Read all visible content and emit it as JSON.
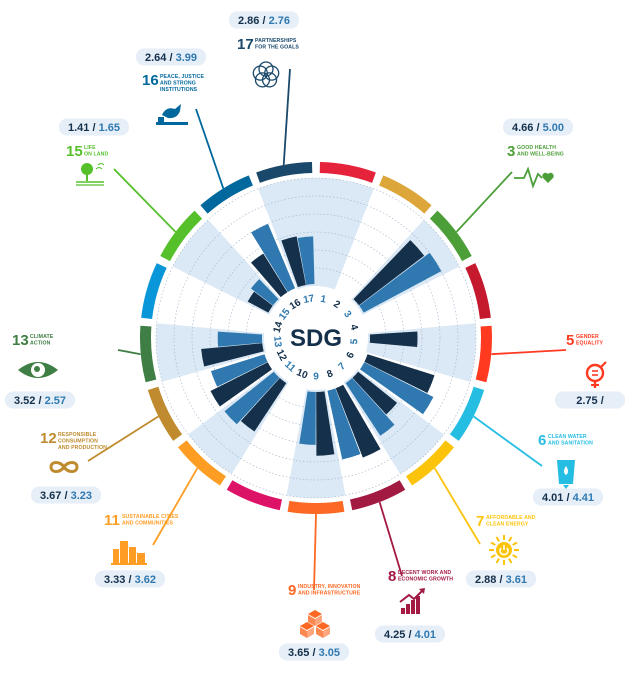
{
  "chart_data": {
    "type": "radial-bar",
    "center_label": "SDG",
    "rmax": 6,
    "colors": {
      "dark_series": "#14304a",
      "light_series": "#2f79b0",
      "background_band": "#dbe8f5",
      "pill": "#e6eef8"
    },
    "goals": [
      {
        "num": "1",
        "title": [],
        "color": "#e5243b",
        "a": null,
        "b": null,
        "icon": "",
        "labelled": false
      },
      {
        "num": "2",
        "title": [],
        "color": "#dda63a",
        "a": null,
        "b": null,
        "icon": "",
        "labelled": false
      },
      {
        "num": "3",
        "title": [
          "GOOD HEALTH",
          "AND WELL-BEING"
        ],
        "color": "#4c9f38",
        "a": "4.66",
        "b": "5.00",
        "va": 4.66,
        "vb": 5.0,
        "icon": "heartbeat-icon",
        "labelled": true
      },
      {
        "num": "4",
        "title": [],
        "color": "#c5192d",
        "a": null,
        "b": null,
        "icon": "",
        "labelled": false
      },
      {
        "num": "5",
        "title": [
          "GENDER",
          "EQUALITY"
        ],
        "color": "#ff3a21",
        "a": "2.75",
        "b": "",
        "va": 2.75,
        "vb": null,
        "icon": "gender-equality-icon",
        "labelled": true
      },
      {
        "num": "6",
        "title": [
          "CLEAN WATER",
          "AND SANITATION"
        ],
        "color": "#26bde2",
        "a": "4.01",
        "b": "4.41",
        "va": 4.01,
        "vb": 4.41,
        "icon": "water-glass-icon",
        "labelled": true
      },
      {
        "num": "7",
        "title": [
          "AFFORDABLE AND",
          "CLEAN ENERGY"
        ],
        "color": "#fcc30b",
        "a": "2.88",
        "b": "3.61",
        "va": 2.88,
        "vb": 3.61,
        "icon": "sun-power-icon",
        "labelled": true
      },
      {
        "num": "8",
        "title": [
          "DECENT WORK AND",
          "ECONOMIC GROWTH"
        ],
        "color": "#a21942",
        "a": "4.25",
        "b": "4.01",
        "va": 4.25,
        "vb": 4.01,
        "icon": "growth-chart-icon",
        "labelled": true
      },
      {
        "num": "9",
        "title": [
          "INDUSTRY, INNOVATION",
          "AND INFRASTRUCTURE"
        ],
        "color": "#fd6925",
        "a": "3.65",
        "b": "3.05",
        "va": 3.65,
        "vb": 3.05,
        "icon": "cubes-icon",
        "labelled": true
      },
      {
        "num": "10",
        "title": [],
        "color": "#dd1367",
        "a": null,
        "b": null,
        "icon": "",
        "labelled": false
      },
      {
        "num": "11",
        "title": [
          "SUSTAINABLE CITIES",
          "AND COMMUNITIES"
        ],
        "color": "#fd9d24",
        "a": "3.33",
        "b": "3.62",
        "va": 3.33,
        "vb": 3.62,
        "icon": "city-icon",
        "labelled": true
      },
      {
        "num": "12",
        "title": [
          "RESPONSIBLE",
          "CONSUMPTION",
          "AND PRODUCTION"
        ],
        "color": "#bf8b2e",
        "a": "3.67",
        "b": "3.23",
        "va": 3.67,
        "vb": 3.23,
        "icon": "infinity-icon",
        "labelled": true
      },
      {
        "num": "13",
        "title": [
          "CLIMATE",
          "ACTION"
        ],
        "color": "#3f7e44",
        "a": "3.52",
        "b": "2.57",
        "va": 3.52,
        "vb": 2.57,
        "icon": "eye-globe-icon",
        "labelled": true
      },
      {
        "num": "14",
        "title": [],
        "color": "#0a97d9",
        "a": null,
        "b": null,
        "icon": "",
        "labelled": false
      },
      {
        "num": "15",
        "title": [
          "LIFE",
          "ON LAND"
        ],
        "color": "#56c02b",
        "a": "1.41",
        "b": "1.65",
        "va": 1.41,
        "vb": 1.65,
        "icon": "tree-icon",
        "labelled": true
      },
      {
        "num": "16",
        "title": [
          "PEACE, JUSTICE",
          "AND STRONG",
          "INSTITUTIONS"
        ],
        "color": "#00689d",
        "a": "2.64",
        "b": "3.99",
        "va": 2.64,
        "vb": 3.99,
        "icon": "dove-gavel-icon",
        "labelled": true
      },
      {
        "num": "17",
        "title": [
          "PARTNERSHIPS",
          "FOR THE GOALS"
        ],
        "color": "#19486a",
        "a": "2.86",
        "b": "2.76",
        "va": 2.86,
        "vb": 2.76,
        "icon": "partnership-rings-icon",
        "labelled": true
      }
    ]
  }
}
